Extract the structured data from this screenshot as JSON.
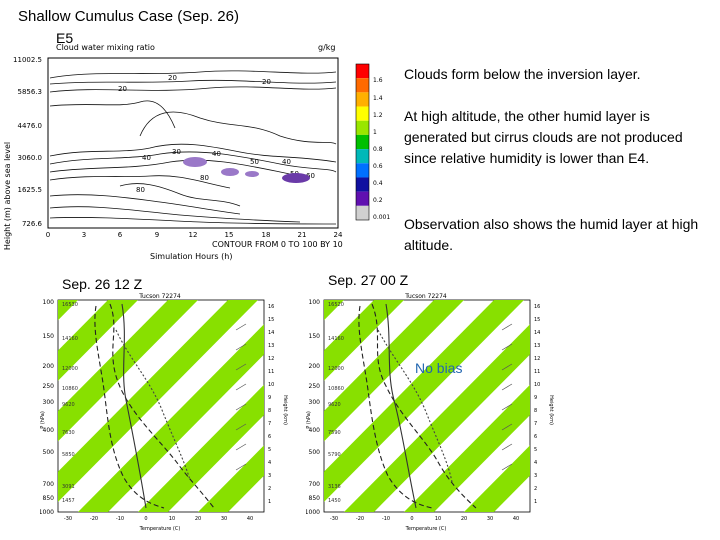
{
  "title": "Shallow Cumulus Case (Sep. 26)",
  "case_tag": "E5",
  "notes": [
    "Clouds form below the inversion layer.",
    "At high altitude, the other humid layer is generated but cirrus clouds are not produced since relative humidity is lower than E4.",
    "Observation also shows the humid layer at high altitude."
  ],
  "contour_plot": {
    "heading_left": "Cloud water mixing ratio",
    "heading_right": "g/kg",
    "ylabel": "Height (m) above sea level",
    "xlabel": "Simulation Hours (h)",
    "contour_note": "CONTOUR FROM 0 TO 100 BY 10",
    "y_ticks": [
      "11002.5",
      "5856.3",
      "4476.0",
      "3060.0",
      "1625.5",
      "726.6"
    ],
    "x_ticks": [
      "0",
      "3",
      "6",
      "9",
      "12",
      "15",
      "18",
      "21",
      "24"
    ],
    "colorbar_ticks": [
      "1.6",
      "1.4",
      "1.2",
      "1",
      "0.8",
      "0.6",
      "0.4",
      "0.2",
      "0.001"
    ],
    "colorbar_colors": [
      "#ff0000",
      "#ff6a00",
      "#ffb000",
      "#ffff00",
      "#99e600",
      "#00c000",
      "#00b8b8",
      "#0070ff",
      "#1010a0",
      "#6010b0",
      "#d0d0d0"
    ],
    "contour_labels": [
      "20",
      "20",
      "20",
      "40",
      "30",
      "40",
      "50",
      "40",
      "80",
      "50",
      "60",
      "80"
    ]
  },
  "soundings": [
    {
      "label": "Sep. 26 12 Z",
      "station": "Tucson 72274",
      "p_ticks": [
        "100",
        "150",
        "200",
        "250",
        "300",
        "400",
        "500",
        "700",
        "850",
        "1000"
      ],
      "h_values": [
        "16530",
        "14160",
        "12000",
        "10860",
        "9620",
        "7630",
        "5850",
        "3091",
        "1457"
      ],
      "km_ticks": [
        "16",
        "15",
        "14",
        "13",
        "12",
        "11",
        "10",
        "9",
        "8",
        "7",
        "6",
        "5",
        "4",
        "3",
        "2",
        "1"
      ],
      "t_ticks": [
        "-30",
        "-20",
        "-10",
        "0",
        "10",
        "20",
        "30",
        "40"
      ],
      "xlabel": "Temperature (C)",
      "ylabel": "P (hPa)",
      "ylabel_right": "Height (km)"
    },
    {
      "label": "Sep. 27 00 Z",
      "station": "Tucson 72274",
      "p_ticks": [
        "100",
        "150",
        "200",
        "250",
        "300",
        "400",
        "500",
        "700",
        "850",
        "1000"
      ],
      "h_values": [
        "16520",
        "14160",
        "12000",
        "10860",
        "9620",
        "7590",
        "5790",
        "3136",
        "1450"
      ],
      "km_ticks": [
        "16",
        "15",
        "14",
        "13",
        "12",
        "11",
        "10",
        "9",
        "8",
        "7",
        "6",
        "5",
        "4",
        "3",
        "2",
        "1"
      ],
      "t_ticks": [
        "-30",
        "-20",
        "-10",
        "0",
        "10",
        "20",
        "30",
        "40"
      ],
      "xlabel": "Temperature (C)",
      "ylabel": "P (hPa)",
      "ylabel_right": "Height (km)",
      "annotation": "No bias"
    }
  ]
}
